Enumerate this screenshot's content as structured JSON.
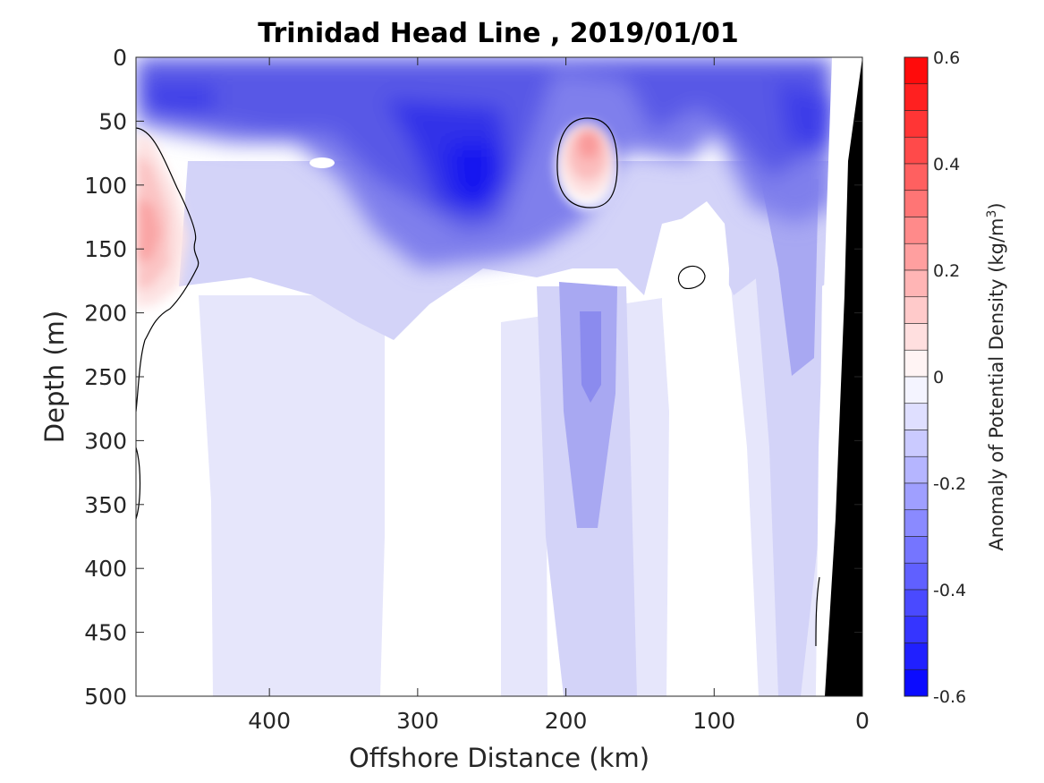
{
  "chart_data": {
    "type": "heatmap",
    "title": "Trinidad Head Line , 2019/01/01",
    "xlabel": "Offshore Distance (km)",
    "ylabel": "Depth (m)",
    "xlim": [
      490,
      0
    ],
    "ylim": [
      0,
      500
    ],
    "x_reversed": true,
    "y_reversed": true,
    "x_ticks": [
      "400",
      "300",
      "200",
      "100",
      "0"
    ],
    "x_tick_values": [
      400,
      300,
      200,
      100,
      0
    ],
    "y_ticks": [
      "0",
      "50",
      "100",
      "150",
      "200",
      "250",
      "300",
      "350",
      "400",
      "450",
      "500"
    ],
    "y_tick_values": [
      0,
      50,
      100,
      150,
      200,
      250,
      300,
      350,
      400,
      450,
      500
    ],
    "colorbar": {
      "label_main": "Anomaly of Potential Density (kg/m",
      "label_sup": "3",
      "label_end": ")",
      "range": [
        -0.6,
        0.6
      ],
      "step": 0.05,
      "ticks": [
        "0.6",
        "0.4",
        "0.2",
        "0",
        "-0.2",
        "-0.4",
        "-0.6"
      ],
      "tick_values": [
        0.6,
        0.4,
        0.2,
        0,
        -0.2,
        -0.4,
        -0.6
      ],
      "low_color": "#0000ff",
      "mid_color": "#ffffff",
      "high_color": "#ff0000"
    },
    "features": [
      {
        "name": "surface-negative-layer",
        "x": [
          490,
          20
        ],
        "depth": [
          0,
          120
        ],
        "value": -0.35
      },
      {
        "name": "negative-core-265km",
        "x": 265,
        "depth": 100,
        "value": -0.55
      },
      {
        "name": "negative-core-300km",
        "x": 300,
        "depth": 55,
        "value": -0.5
      },
      {
        "name": "negative-plume-185km",
        "x": 185,
        "depth": [
          150,
          400
        ],
        "value": -0.25
      },
      {
        "name": "positive-eddy-185km",
        "x": 185,
        "depth": 75,
        "value": 0.25
      },
      {
        "name": "positive-offshore-480km",
        "x": 480,
        "depth": 130,
        "value": 0.2
      },
      {
        "name": "deep-weak-negative",
        "x": [
          440,
          240
        ],
        "depth": [
          200,
          500
        ],
        "value": -0.07
      }
    ],
    "seafloor": {
      "color": "#000000",
      "x_at_bottom": 28,
      "x_at_top": 0
    }
  }
}
